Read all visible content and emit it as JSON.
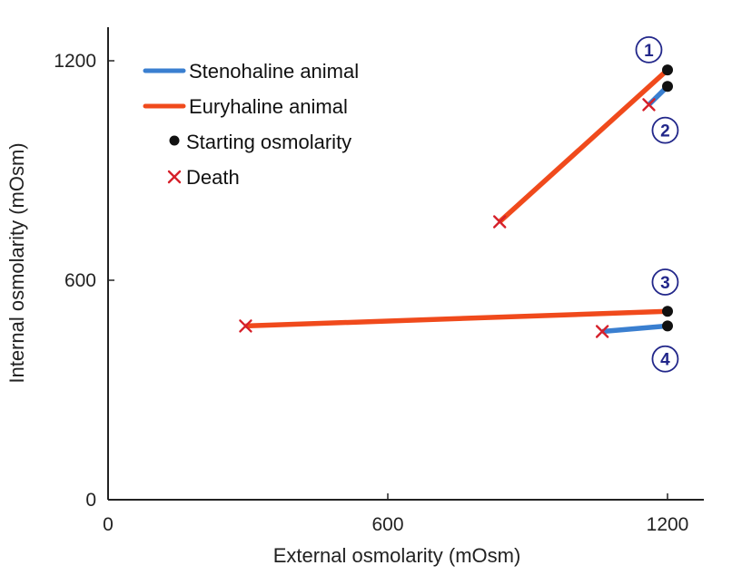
{
  "chart_data": {
    "type": "line",
    "title": "",
    "xlabel": "External osmolarity (mOsm)",
    "ylabel": "Internal osmolarity (mOsm)",
    "xlim": [
      0,
      1290
    ],
    "ylim": [
      0,
      1290
    ],
    "x_ticks": [
      0,
      600,
      1200
    ],
    "y_ticks": [
      0,
      600,
      1200
    ],
    "x_tick_labels": [
      "0",
      "600",
      "1200"
    ],
    "y_tick_labels": [
      "0",
      "600",
      "1200"
    ],
    "grid": false,
    "legend_position": "top-left",
    "legend": [
      {
        "label": "Stenohaline animal",
        "kind": "line",
        "color": "#3a7fd0"
      },
      {
        "label": "Euryhaline animal",
        "kind": "line",
        "color": "#f04a1c"
      },
      {
        "label": "Starting osmolarity",
        "kind": "dot",
        "color": "#111111"
      },
      {
        "label": "Death",
        "kind": "cross",
        "color": "#d6202a"
      }
    ],
    "series": [
      {
        "id": "1",
        "name": "Euryhaline animal",
        "animal": "euryhaline",
        "start": {
          "x": 1200,
          "y": 1175
        },
        "end": {
          "x": 840,
          "y": 760
        }
      },
      {
        "id": "2",
        "name": "Stenohaline animal",
        "animal": "stenohaline",
        "start": {
          "x": 1200,
          "y": 1130
        },
        "end": {
          "x": 1160,
          "y": 1080
        }
      },
      {
        "id": "3",
        "name": "Euryhaline animal",
        "animal": "euryhaline",
        "start": {
          "x": 1200,
          "y": 515
        },
        "end": {
          "x": 295,
          "y": 475
        }
      },
      {
        "id": "4",
        "name": "Stenohaline animal",
        "animal": "stenohaline",
        "start": {
          "x": 1200,
          "y": 475
        },
        "end": {
          "x": 1060,
          "y": 460
        }
      }
    ],
    "curve_labels": [
      {
        "text": "1",
        "x": 1160,
        "y": 1230
      },
      {
        "text": "2",
        "x": 1195,
        "y": 1010
      },
      {
        "text": "3",
        "x": 1195,
        "y": 595
      },
      {
        "text": "4",
        "x": 1195,
        "y": 385
      }
    ]
  }
}
